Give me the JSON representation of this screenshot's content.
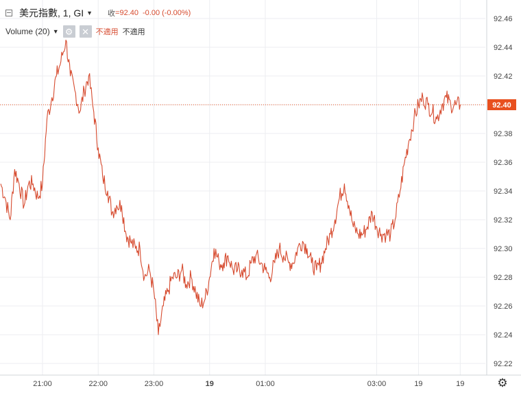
{
  "header": {
    "symbol": "美元指數, 1, GI",
    "close_label": "收",
    "close_value": "=92.40",
    "change": "-0.00 (-0.00%)"
  },
  "volume": {
    "label": "Volume (20)",
    "not_applicable_1": "不適用",
    "not_applicable_2": "不適用"
  },
  "colors": {
    "line": "#d64a2e",
    "grid": "#eceef1",
    "axis_text": "#444444",
    "price_tag": "#e8501f"
  },
  "chart_data": {
    "type": "line",
    "y_ticks": [
      "92.46",
      "92.44",
      "92.42",
      "92.40",
      "92.38",
      "92.36",
      "92.34",
      "92.32",
      "92.30",
      "92.28",
      "92.26",
      "92.24",
      "92.22"
    ],
    "x_ticks": [
      {
        "label": "21:00",
        "t": 21.0
      },
      {
        "label": "22:00",
        "t": 22.0
      },
      {
        "label": "23:00",
        "t": 23.0
      },
      {
        "label": "19",
        "t": 24.0,
        "bold": true
      },
      {
        "label": "01:00",
        "t": 25.0
      },
      {
        "label": "03:00",
        "t": 27.0
      },
      {
        "label": "19",
        "t": 27.75,
        "bold": false
      },
      {
        "label": "19",
        "t": 28.5,
        "bold": false
      }
    ],
    "ylim": [
      92.21,
      92.47
    ],
    "xlim": [
      20.25,
      28.6
    ],
    "last_price": "92.40",
    "last_value": 92.4,
    "grid": true,
    "series": [
      {
        "x": [
          20.25,
          20.33,
          20.42,
          20.5,
          20.58,
          20.67,
          20.75,
          20.83,
          20.92,
          21.0,
          21.08,
          21.17,
          21.25,
          21.33,
          21.42,
          21.5,
          21.58,
          21.67,
          21.75,
          21.83,
          21.92,
          22.0,
          22.08,
          22.17,
          22.25,
          22.33,
          22.42,
          22.5,
          22.58,
          22.67,
          22.75,
          22.83,
          22.92,
          23.0,
          23.08,
          23.17,
          23.25,
          23.33,
          23.42,
          23.5,
          23.58,
          23.67,
          23.75,
          23.83,
          23.92,
          24.0,
          24.08,
          24.17,
          24.25,
          24.33,
          24.42,
          24.5,
          24.58,
          24.67,
          24.75,
          24.83,
          24.92,
          25.0,
          25.08,
          25.17,
          25.25,
          25.33,
          25.42,
          25.5,
          25.58,
          25.67,
          25.75,
          25.83,
          25.92,
          26.0,
          26.08,
          26.17,
          26.25,
          26.33,
          26.42,
          26.5,
          26.58,
          26.67,
          26.75,
          26.83,
          26.92,
          27.0,
          27.08,
          27.17,
          27.25,
          27.33,
          27.42,
          27.5,
          27.58,
          27.67,
          27.75,
          27.83,
          27.92,
          28.0,
          28.08,
          28.17,
          28.25,
          28.33,
          28.42,
          28.5
        ],
        "y": [
          92.345,
          92.335,
          92.32,
          92.355,
          92.345,
          92.33,
          92.345,
          92.345,
          92.335,
          92.345,
          92.39,
          92.405,
          92.42,
          92.43,
          92.445,
          92.42,
          92.41,
          92.395,
          92.41,
          92.42,
          92.395,
          92.37,
          92.35,
          92.34,
          92.325,
          92.33,
          92.33,
          92.31,
          92.305,
          92.3,
          92.3,
          92.28,
          92.285,
          92.27,
          92.24,
          92.26,
          92.27,
          92.28,
          92.28,
          92.285,
          92.275,
          92.28,
          92.27,
          92.26,
          92.265,
          92.28,
          92.3,
          92.29,
          92.29,
          92.295,
          92.285,
          92.285,
          92.285,
          92.28,
          92.29,
          92.295,
          92.29,
          92.285,
          92.28,
          92.29,
          92.3,
          92.295,
          92.29,
          92.29,
          92.3,
          92.305,
          92.3,
          92.29,
          92.285,
          92.29,
          92.3,
          92.31,
          92.32,
          92.335,
          92.345,
          92.33,
          92.315,
          92.31,
          92.31,
          92.315,
          92.325,
          92.315,
          92.31,
          92.31,
          92.31,
          92.32,
          92.34,
          92.36,
          92.375,
          92.39,
          92.4,
          92.405,
          92.4,
          92.395,
          92.39,
          92.4,
          92.405,
          92.4,
          92.4,
          92.4
        ]
      }
    ]
  }
}
